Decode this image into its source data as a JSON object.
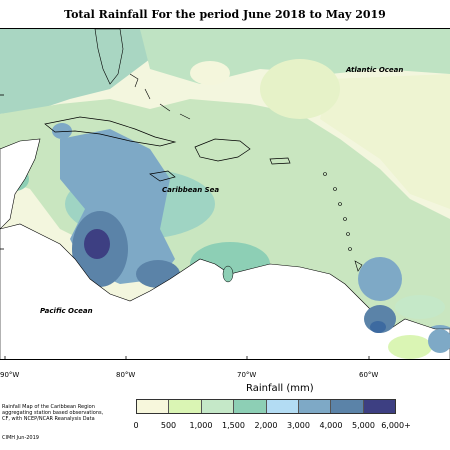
{
  "title": "Total Rainfall For the period June 2018 to May 2019",
  "map": {
    "labels": {
      "atlantic": "Atlantic Ocean",
      "caribbean": "Caribbean Sea",
      "pacific": "Pacific Ocean"
    },
    "longitude_ticks": [
      "90°W",
      "80°W",
      "70°W",
      "60°W"
    ]
  },
  "legend": {
    "title": "Rainfall (mm)",
    "colors": [
      "#f7f7dc",
      "#daf5b4",
      "#c5e8c8",
      "#8dcfb5",
      "#b3dcf3",
      "#7ea9c6",
      "#5b83a8",
      "#3d3f82"
    ],
    "bin_labels": [
      "0",
      "500",
      "1,000",
      "1,500",
      "2,000",
      "3,000",
      "4,000",
      "5,000",
      "6,000+"
    ]
  },
  "notes": [
    "Rainfall Map of the Caribbean Region",
    "aggregating station based observations,",
    "CF, with NCEP/NCAR Reanalysis Data",
    "CIMH Jun-2019"
  ]
}
